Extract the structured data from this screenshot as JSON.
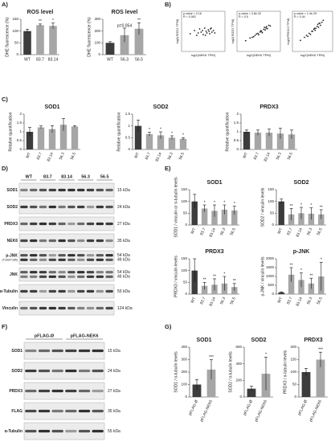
{
  "panels": [
    "A)",
    "B)",
    "C)",
    "D)",
    "E)",
    "F)",
    "G)"
  ],
  "chart_data": [
    {
      "type": "bar",
      "title": "ROS level",
      "ylabel": "DHE fluorescence (%)",
      "categories": [
        "WT",
        "83.7",
        "83.14"
      ],
      "values": [
        100,
        125,
        122
      ],
      "errors": [
        8,
        5,
        12
      ],
      "colors": [
        "#3c3c3c",
        "#a6a6a6",
        "#a6a6a6"
      ],
      "annotations": [
        null,
        "**",
        "*"
      ],
      "ylim": [
        0,
        150
      ],
      "yticks": [
        0,
        50,
        100,
        150
      ]
    },
    {
      "type": "bar",
      "title": "ROS level",
      "ylabel": "DHE fluorescence (%)",
      "categories": [
        "WT",
        "56.3",
        "56.5"
      ],
      "values": [
        100,
        165,
        220
      ],
      "errors": [
        10,
        60,
        50
      ],
      "colors": [
        "#3c3c3c",
        "#a6a6a6",
        "#a6a6a6"
      ],
      "annotations": [
        null,
        "p=0.054",
        "**"
      ],
      "ylim": [
        0,
        300
      ],
      "yticks": [
        0,
        100,
        200,
        300
      ]
    },
    {
      "type": "scatter",
      "stats": [
        "p-value = 0.16",
        "R = 0.063"
      ],
      "xlabel": "log2(NEK6 TPM)",
      "ylabel": "log2(SOD1 TPM)",
      "color": "#222222",
      "xlim": [
        2,
        8
      ],
      "ylim": [
        5,
        10
      ],
      "x": [
        3.2,
        3.8,
        4.1,
        4.5,
        4.7,
        5.0,
        5.2,
        5.4,
        5.5,
        5.7,
        5.9,
        6.0,
        6.2,
        6.4,
        6.6,
        4.9,
        5.3,
        5.8,
        4.3,
        6.1
      ],
      "y": [
        7.2,
        7.6,
        7.0,
        7.8,
        7.4,
        7.1,
        7.9,
        7.5,
        7.3,
        7.7,
        7.2,
        7.8,
        7.4,
        7.6,
        7.3,
        7.6,
        7.0,
        7.5,
        7.3,
        7.9
      ]
    },
    {
      "type": "scatter",
      "stats": [
        "p-value = 3.8e-32",
        "R = 0.5"
      ],
      "xlabel": "log2(NEK6 TPM)",
      "ylabel": "log2(SOD2 TPM)",
      "color": "#222222",
      "xlim": [
        2,
        8
      ],
      "ylim": [
        3,
        9
      ],
      "x": [
        3.2,
        3.8,
        4.1,
        4.5,
        4.7,
        5.0,
        5.2,
        5.4,
        5.5,
        5.7,
        5.9,
        6.0,
        6.2,
        6.4,
        6.6,
        4.9,
        5.3,
        5.8,
        4.3,
        6.1
      ],
      "y": [
        4.6,
        5.0,
        5.1,
        5.4,
        5.6,
        5.5,
        5.9,
        6.0,
        5.8,
        6.3,
        6.2,
        6.5,
        6.4,
        6.9,
        6.8,
        5.7,
        6.1,
        6.6,
        5.2,
        6.7
      ]
    },
    {
      "type": "scatter",
      "stats": [
        "p-value = 1.4e-29",
        "R = 0.44"
      ],
      "xlabel": "log2(NEK6 TPM)",
      "ylabel": "log2(PRDX3 TPM)",
      "color": "#222222",
      "xlim": [
        2,
        8
      ],
      "ylim": [
        4,
        8
      ],
      "x": [
        3.2,
        3.8,
        4.1,
        4.5,
        4.7,
        5.0,
        5.2,
        5.4,
        5.5,
        5.7,
        5.9,
        6.0,
        6.2,
        6.4,
        6.6,
        4.9,
        5.3,
        5.8,
        4.3,
        6.1
      ],
      "y": [
        5.1,
        5.4,
        5.6,
        5.8,
        5.7,
        6.0,
        6.2,
        6.1,
        6.3,
        6.5,
        6.4,
        6.8,
        6.6,
        6.9,
        7.1,
        6.0,
        6.3,
        6.7,
        5.5,
        6.8
      ]
    },
    {
      "type": "bar",
      "title": "SOD1",
      "ylabel": "Relative quantification",
      "categories": [
        "WT",
        "83.7",
        "83.14",
        "56.3",
        "56.5"
      ],
      "values": [
        1.0,
        1.25,
        1.15,
        1.4,
        1.3
      ],
      "errors": [
        0.25,
        0.08,
        0.2,
        0.35,
        0.05
      ],
      "colors": [
        "#3c3c3c",
        "#a6a6a6",
        "#a6a6a6",
        "#a6a6a6",
        "#a6a6a6"
      ],
      "annotations": [
        null,
        null,
        null,
        null,
        null
      ],
      "ylim": [
        0,
        2
      ],
      "yticks": [
        0,
        0.5,
        1,
        1.5,
        2
      ]
    },
    {
      "type": "bar",
      "title": "SOD2",
      "ylabel": "Relative quantification",
      "categories": [
        "WT",
        "83.7",
        "83.14",
        "56.3",
        "56.5"
      ],
      "values": [
        1.0,
        0.65,
        0.6,
        0.5,
        0.45
      ],
      "errors": [
        0.25,
        0.08,
        0.15,
        0.08,
        0.05
      ],
      "colors": [
        "#3c3c3c",
        "#a6a6a6",
        "#a6a6a6",
        "#a6a6a6",
        "#a6a6a6"
      ],
      "annotations": [
        null,
        "*",
        "*",
        "*",
        "*"
      ],
      "ylim": [
        0,
        1.5
      ],
      "yticks": [
        0,
        0.5,
        1,
        1.5
      ]
    },
    {
      "type": "bar",
      "title": "PRDX3",
      "ylabel": "Relative quantification",
      "categories": [
        "WT",
        "83.7",
        "83.14",
        "56.3",
        "56.5"
      ],
      "values": [
        1.0,
        0.95,
        0.95,
        0.9,
        0.85
      ],
      "errors": [
        0.1,
        0.15,
        0.2,
        0.3,
        0.25
      ],
      "colors": [
        "#3c3c3c",
        "#a6a6a6",
        "#a6a6a6",
        "#a6a6a6",
        "#a6a6a6"
      ],
      "annotations": [
        null,
        null,
        null,
        null,
        null
      ],
      "ylim": [
        0,
        2
      ],
      "yticks": [
        0,
        0.5,
        1,
        1.5,
        2
      ]
    },
    {
      "type": "bar",
      "title": "SOD1",
      "ylabel": "SOD1 / vinculin or α-tubulin levels",
      "categories": [
        "WT",
        "83.7",
        "83.14",
        "56.3",
        "56.5"
      ],
      "values": [
        100,
        70,
        60,
        65,
        62
      ],
      "errors": [
        30,
        15,
        25,
        20,
        18
      ],
      "colors": [
        "#3c3c3c",
        "#a6a6a6",
        "#a6a6a6",
        "#a6a6a6",
        "#a6a6a6"
      ],
      "annotations": [
        null,
        "*",
        "*",
        "*",
        "*"
      ],
      "ylim": [
        0,
        150
      ],
      "yticks": [
        0,
        50,
        100,
        150
      ]
    },
    {
      "type": "bar",
      "title": "SOD2",
      "ylabel": "SOD2 / vinculin levels",
      "categories": [
        "WT",
        "83.7",
        "83.14",
        "56.3",
        "56.5"
      ],
      "values": [
        100,
        45,
        50,
        48,
        45
      ],
      "errors": [
        10,
        25,
        25,
        25,
        20
      ],
      "colors": [
        "#3c3c3c",
        "#a6a6a6",
        "#a6a6a6",
        "#a6a6a6",
        "#a6a6a6"
      ],
      "annotations": [
        null,
        "**",
        "*",
        "*",
        "**"
      ],
      "ylim": [
        0,
        150
      ],
      "yticks": [
        0,
        50,
        100,
        150
      ]
    },
    {
      "type": "bar",
      "title": "PRDX3",
      "ylabel": "PRDX3 / vinculin levels",
      "categories": [
        "WT",
        "83.7",
        "83.14",
        "56.3",
        "56.5"
      ],
      "values": [
        100,
        35,
        40,
        45,
        30
      ],
      "errors": [
        50,
        15,
        25,
        30,
        15
      ],
      "colors": [
        "#3c3c3c",
        "#a6a6a6",
        "#a6a6a6",
        "#a6a6a6",
        "#a6a6a6"
      ],
      "annotations": [
        null,
        "**",
        "**",
        "*",
        "**"
      ],
      "ylim": [
        0,
        150
      ],
      "yticks": [
        0,
        50,
        100,
        150
      ]
    },
    {
      "type": "bar",
      "title": "p-JNK",
      "ylabel": "p-JNK / vinculin levels",
      "categories": [
        "WT",
        "83.7",
        "83.14",
        "56.3",
        "56.5"
      ],
      "values": [
        100,
        1100,
        800,
        600,
        1000
      ],
      "errors": [
        30,
        400,
        400,
        300,
        800
      ],
      "colors": [
        "#3c3c3c",
        "#a6a6a6",
        "#a6a6a6",
        "#a6a6a6",
        "#a6a6a6"
      ],
      "annotations": [
        null,
        "**",
        "*",
        "**",
        "*"
      ],
      "ylim": [
        0,
        2000
      ],
      "yticks": [
        0,
        500,
        1000,
        1500,
        2000
      ]
    },
    {
      "type": "bar",
      "title": "SOD1",
      "ylabel": "SOD1 / α-tubulin levels",
      "categories": [
        "pFLAG-Ø",
        "pFLAG-NEK6"
      ],
      "values": [
        100,
        220
      ],
      "errors": [
        40,
        80
      ],
      "colors": [
        "#3c3c3c",
        "#a6a6a6"
      ],
      "annotations": [
        null,
        "***"
      ],
      "ylim": [
        0,
        400
      ],
      "yticks": [
        0,
        100,
        200,
        300,
        400
      ]
    },
    {
      "type": "bar",
      "title": "SOD2",
      "ylabel": "SOD2 / α-tubulin levels",
      "categories": [
        "pFLAG-Ø",
        "pFLAG-NEK6"
      ],
      "values": [
        100,
        280
      ],
      "errors": [
        30,
        200
      ],
      "colors": [
        "#3c3c3c",
        "#a6a6a6"
      ],
      "annotations": [
        null,
        "*"
      ],
      "ylim": [
        0,
        600
      ],
      "yticks": [
        0,
        200,
        400,
        600
      ]
    },
    {
      "type": "bar",
      "title": "PRDX3",
      "ylabel": "PRDX3 / α-tubulin levels",
      "categories": [
        "pFLAG-Ø",
        "pFLAG-NEK6"
      ],
      "values": [
        100,
        150
      ],
      "errors": [
        15,
        30
      ],
      "colors": [
        "#3c3c3c",
        "#a6a6a6"
      ],
      "annotations": [
        null,
        "***"
      ],
      "ylim": [
        0,
        200
      ],
      "yticks": [
        0,
        50,
        100,
        150,
        200
      ]
    }
  ],
  "blots": [
    {
      "groups": [
        "WT",
        "83.7",
        "83.14",
        "56.3",
        "56.5"
      ],
      "rows": [
        {
          "label": "SOD1",
          "kda": [
            "15 kDa"
          ]
        },
        {
          "label": "SOD2",
          "kda": [
            "24 kDa"
          ]
        },
        {
          "label": "PRDX3",
          "kda": [
            "27 kDa"
          ]
        },
        {
          "label": "NEK6",
          "kda": [
            "35 kDa"
          ]
        },
        {
          "label": "p-JNK",
          "note": "(T183/Y185)",
          "kda": [
            "54 kDa",
            "46 kDa"
          ]
        },
        {
          "label": "JNK",
          "kda": [
            "54 kDa",
            "46 kDa"
          ]
        },
        {
          "label": "α-Tubulin",
          "kda": [
            "55 kDa"
          ]
        },
        {
          "label": "Vinculin",
          "kda": [
            "124 kDa"
          ]
        }
      ]
    },
    {
      "groups": [
        "pFLAG-Ø",
        "pFLAG-NEK6"
      ],
      "rows": [
        {
          "label": "SOD1",
          "kda": [
            "15 kDa"
          ]
        },
        {
          "label": "SOD2",
          "kda": [
            "24 kDa"
          ]
        },
        {
          "label": "PRDX3",
          "kda": [
            "27 kDa"
          ]
        },
        {
          "label": "FLAG",
          "kda": [
            "35 kDa"
          ]
        },
        {
          "label": "α-Tubulin",
          "kda": [
            "55 kDa"
          ]
        }
      ]
    }
  ]
}
